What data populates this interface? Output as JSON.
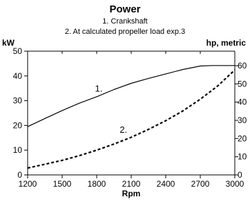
{
  "chart_data": {
    "type": "line",
    "title": "Power",
    "subtitle_lines": [
      "1. Crankshaft",
      "2. At calculated propeller load exp.3"
    ],
    "xlabel": "Rpm",
    "ylabel_left": "kW",
    "ylabel_right": "hp, metric",
    "x_ticks": [
      1200,
      1500,
      1800,
      2100,
      2400,
      2700,
      3000
    ],
    "xlim": [
      1200,
      3000
    ],
    "y_left_ticks": [
      0,
      10,
      20,
      30,
      40,
      50
    ],
    "ylim_left": [
      0,
      50
    ],
    "y_right_ticks": [
      0,
      10,
      20,
      30,
      40,
      50,
      60
    ],
    "ylim_right": [
      0,
      68
    ],
    "grid": false,
    "series": [
      {
        "name": "1.",
        "style": "solid",
        "x": [
          1200,
          1350,
          1500,
          1650,
          1800,
          1950,
          2100,
          2250,
          2400,
          2550,
          2700,
          2800,
          3000
        ],
        "y": [
          19.5,
          22.8,
          26.0,
          29.0,
          31.6,
          34.5,
          37.0,
          39.0,
          40.8,
          42.6,
          44.0,
          44.2,
          44.2
        ]
      },
      {
        "name": "2.",
        "style": "dashed",
        "x": [
          1200,
          1350,
          1500,
          1650,
          1800,
          1950,
          2100,
          2250,
          2400,
          2550,
          2700,
          2850,
          3000
        ],
        "y": [
          2.8,
          4.3,
          5.9,
          7.8,
          10.0,
          12.5,
          15.2,
          18.4,
          21.9,
          25.9,
          30.6,
          35.9,
          42.4
        ]
      }
    ]
  }
}
